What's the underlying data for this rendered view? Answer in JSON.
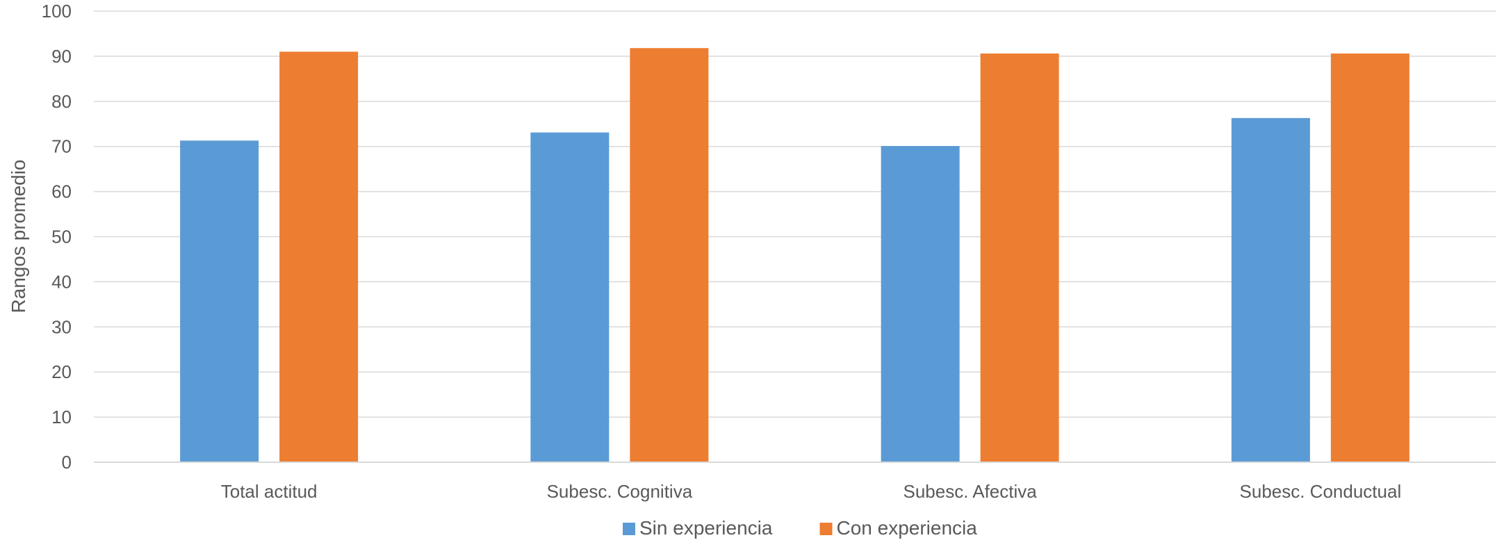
{
  "chart_data": {
    "type": "bar",
    "categories": [
      "Total actitud",
      "Subesc. Cognitiva",
      "Subesc. Afectiva",
      "Subesc. Conductual"
    ],
    "series": [
      {
        "name": "Sin experiencia",
        "color": "#5B9BD5",
        "values": [
          71.3,
          73.1,
          70.1,
          76.3
        ]
      },
      {
        "name": "Con experiencia",
        "color": "#ED7D31",
        "values": [
          91.0,
          91.8,
          90.6,
          90.6
        ]
      }
    ],
    "title": "",
    "xlabel": "",
    "ylabel": "Rangos promedio",
    "ylim": [
      0,
      100
    ],
    "yticks": [
      0,
      10,
      20,
      30,
      40,
      50,
      60,
      70,
      80,
      90,
      100
    ],
    "grid": true,
    "legend_position": "bottom"
  }
}
